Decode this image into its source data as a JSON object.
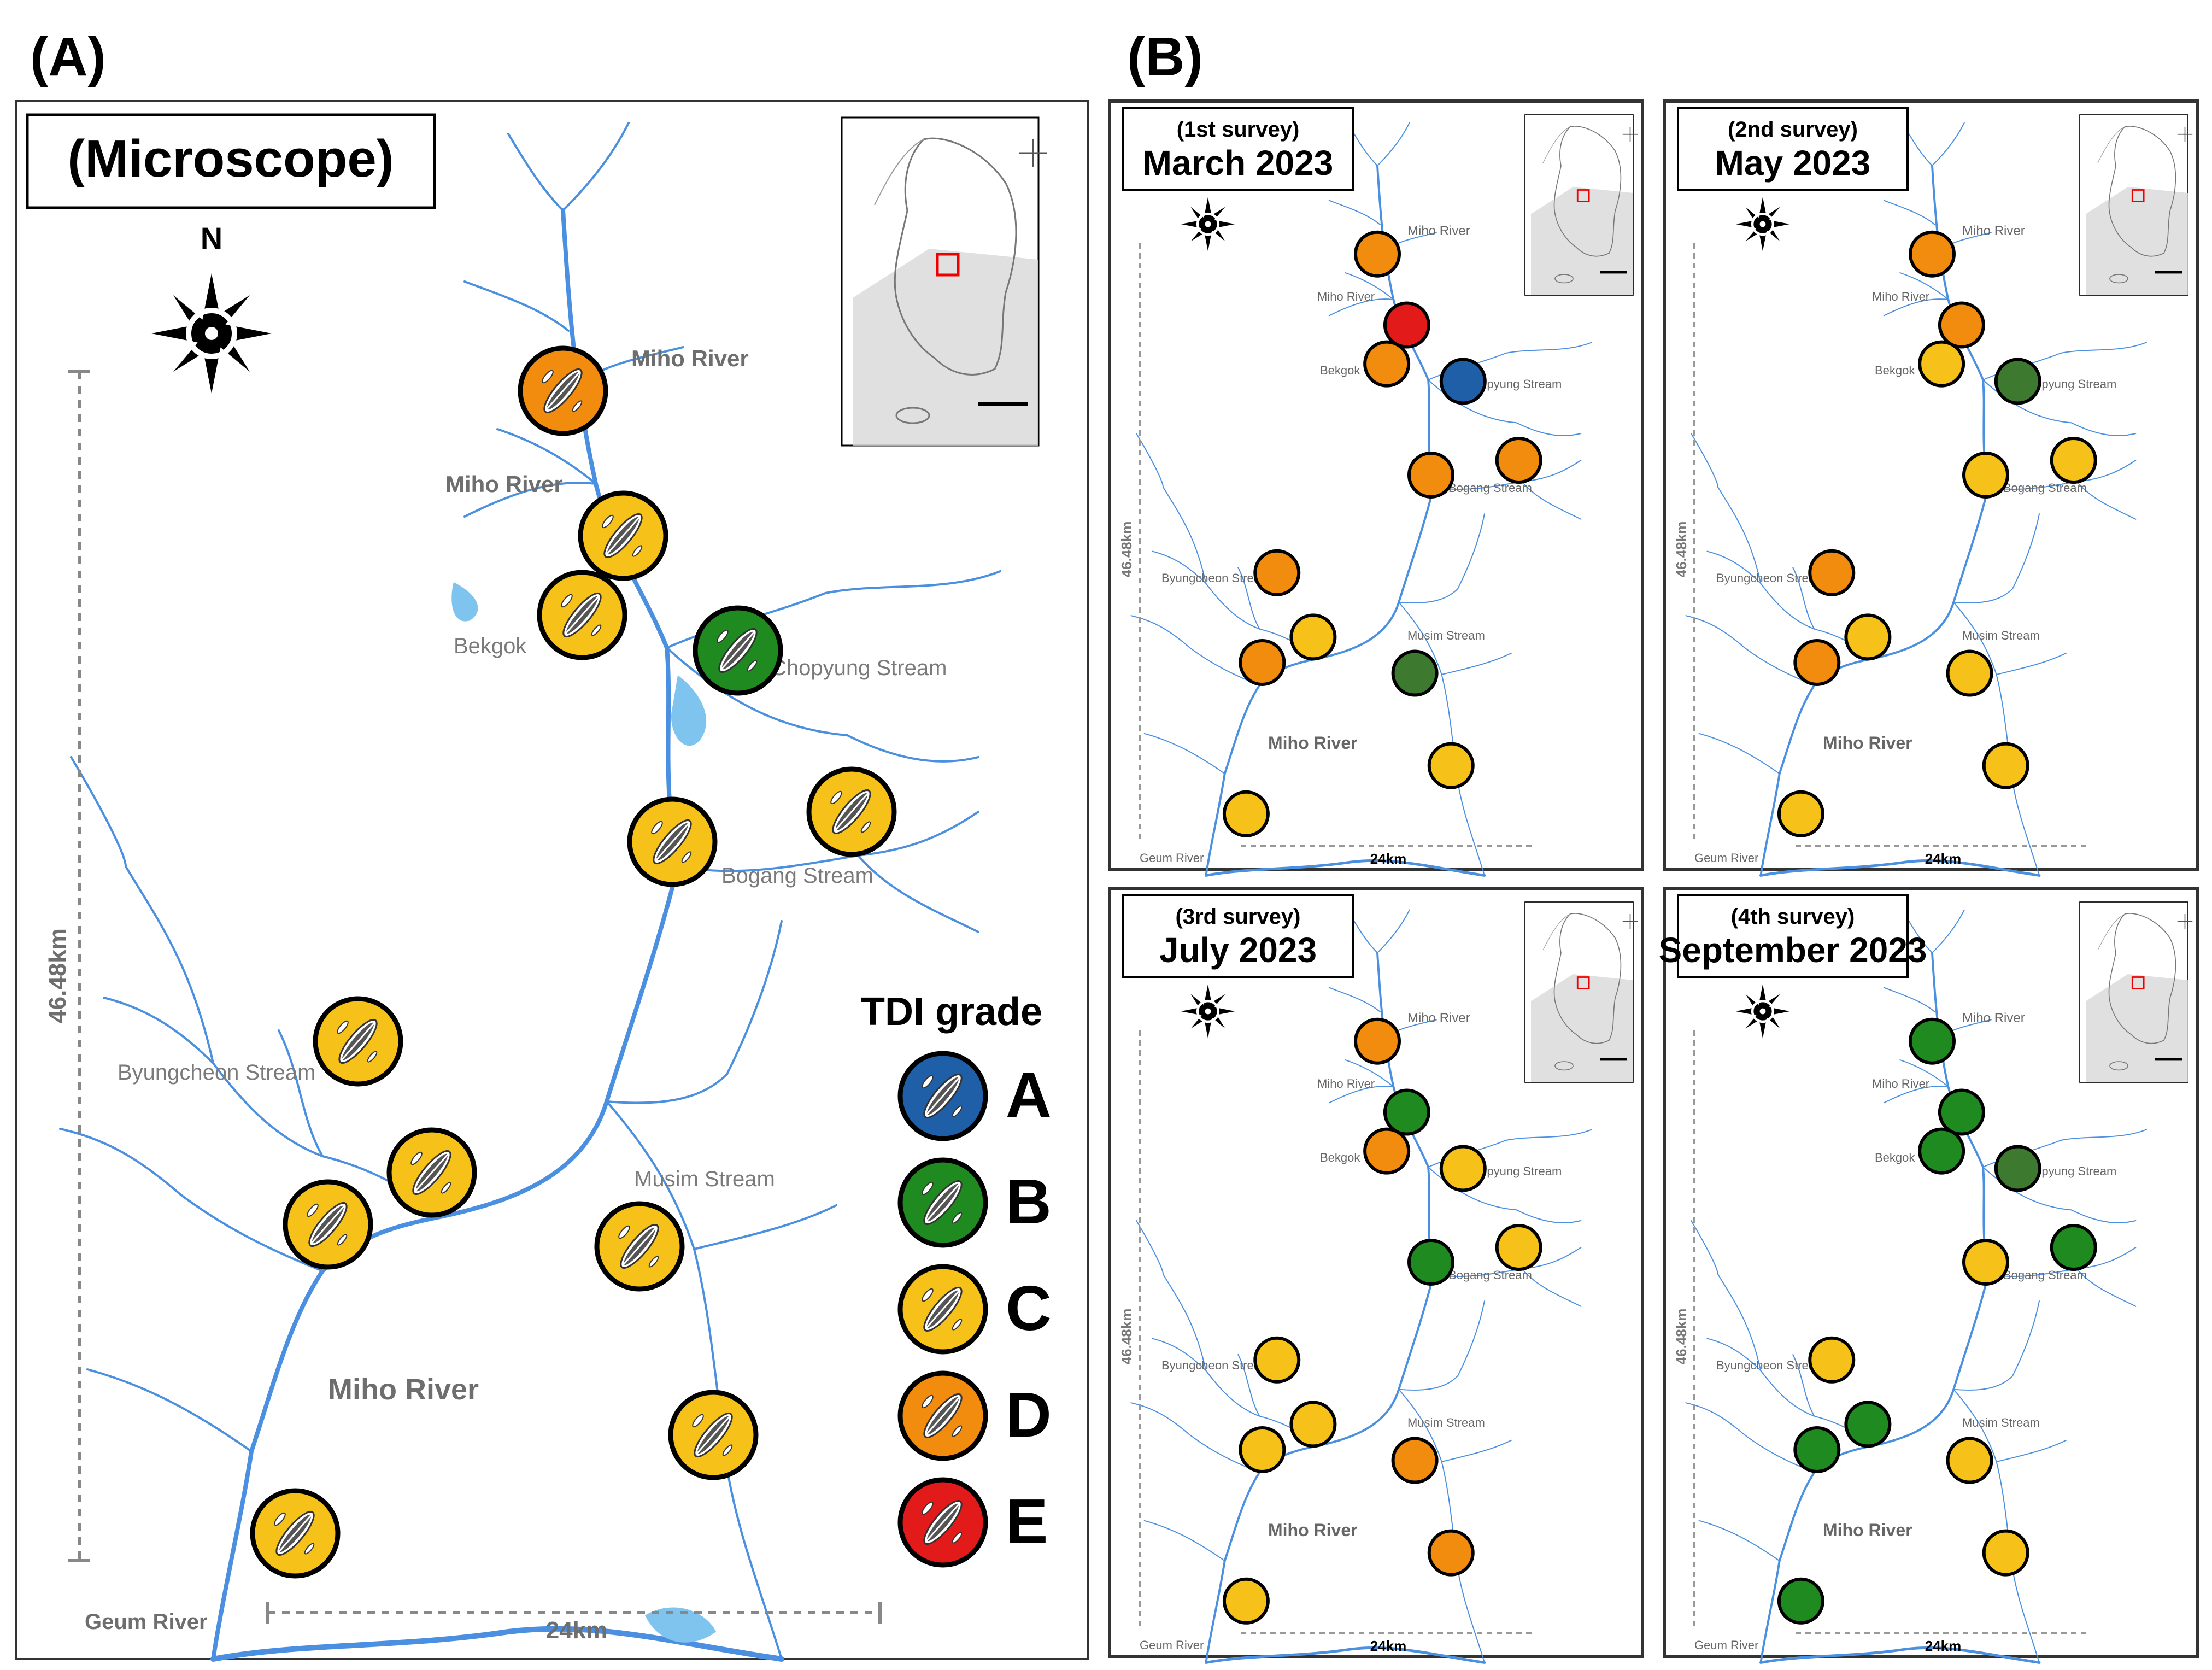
{
  "figure": {
    "panel_a_label": "(A)",
    "panel_b_label": "(B)"
  },
  "map_a": {
    "title": "(Microscope)",
    "north": "N",
    "scale_vertical": "46.48km",
    "scale_horizontal": "24km",
    "places": {
      "miho_river_top": "Miho River",
      "miho_river_mid": "Miho River",
      "bekgok": "Bekgok",
      "chopyung": "Chopyung Stream",
      "bogang": "Bogang Stream",
      "byungcheon": "Byungcheon Stream",
      "musim": "Musim Stream",
      "miho_river_main": "Miho River",
      "geum": "Geum River"
    }
  },
  "legend": {
    "title": "TDI grade",
    "grades": [
      {
        "label": "A",
        "color": "#1f5fa8"
      },
      {
        "label": "B",
        "color": "#1f8a1f"
      },
      {
        "label": "C",
        "color": "#f6c21a"
      },
      {
        "label": "D",
        "color": "#f28c0f"
      },
      {
        "label": "E",
        "color": "#e31a1a"
      }
    ]
  },
  "sites": [
    "S1",
    "S2",
    "S3",
    "S4",
    "S5",
    "S6",
    "S7",
    "S8",
    "S9",
    "S10",
    "S11",
    "S12"
  ],
  "grades_microscope": [
    "D",
    "C",
    "C",
    "B",
    "C",
    "C",
    "C",
    "C",
    "C",
    "C",
    "C",
    "C"
  ],
  "surveys": [
    {
      "line1": "(1st survey)",
      "line2": "March 2023",
      "grades": [
        "D",
        "E",
        "D",
        "A",
        "D",
        "D",
        "D",
        "C",
        "D",
        "G",
        "C",
        "C"
      ]
    },
    {
      "line1": "(2nd survey)",
      "line2": "May 2023",
      "grades": [
        "D",
        "D",
        "C",
        "G",
        "C",
        "C",
        "D",
        "C",
        "D",
        "C",
        "C",
        "C"
      ]
    },
    {
      "line1": "(3rd survey)",
      "line2": "July 2023",
      "grades": [
        "D",
        "B",
        "D",
        "C",
        "B",
        "C",
        "C",
        "C",
        "C",
        "D",
        "D",
        "C"
      ]
    },
    {
      "line1": "(4th survey)",
      "line2": "September 2023",
      "grades": [
        "B",
        "B",
        "B",
        "G",
        "C",
        "B",
        "C",
        "B",
        "B",
        "C",
        "C",
        "B"
      ]
    }
  ],
  "grade_colors": {
    "A": "#1f5fa8",
    "B": "#1f8a1f",
    "G": "#3d7a2f",
    "C": "#f6c21a",
    "D": "#f28c0f",
    "E": "#e31a1a"
  },
  "mini_places": {
    "miho_top": "Miho River",
    "miho_mid": "Miho River",
    "bekgok": "Bekgok",
    "chopyung": "Chopyung Stream",
    "bogang": "Bogang Stream",
    "byungcheon": "Byungcheon Stream",
    "musim": "Musim Stream",
    "miho_main": "Miho River",
    "geum": "Geum River",
    "scale_v": "46.48km",
    "scale_h": "24km"
  }
}
